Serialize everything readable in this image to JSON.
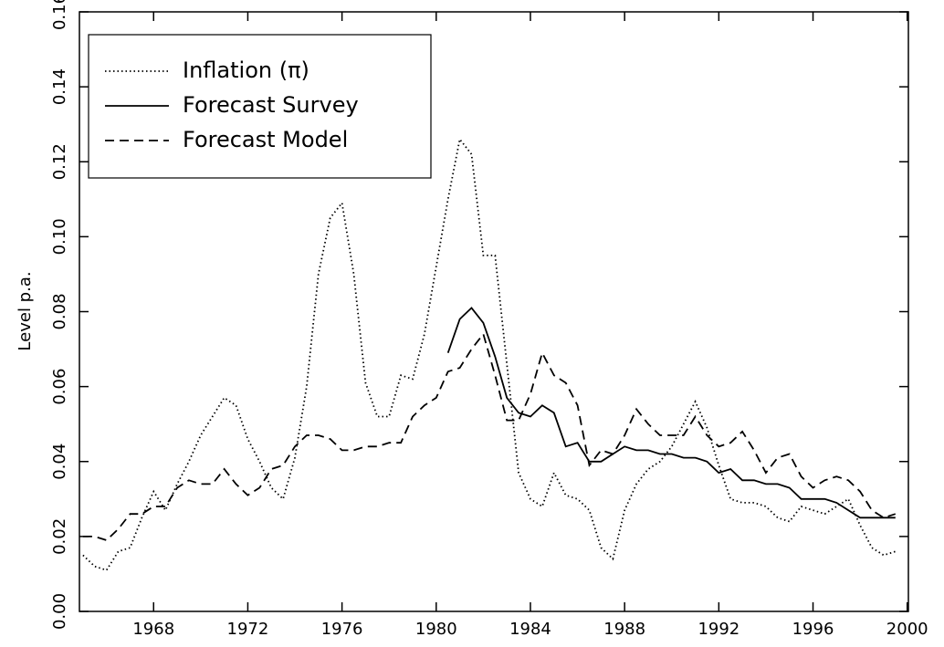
{
  "chart_data": {
    "type": "line",
    "ylabel": "Level p.a.",
    "x": [
      1965.0,
      1965.5,
      1966.0,
      1966.5,
      1967.0,
      1967.5,
      1968.0,
      1968.5,
      1969.0,
      1969.5,
      1970.0,
      1970.5,
      1971.0,
      1971.5,
      1972.0,
      1972.5,
      1973.0,
      1973.5,
      1974.0,
      1974.5,
      1975.0,
      1975.5,
      1976.0,
      1976.5,
      1977.0,
      1977.5,
      1978.0,
      1978.5,
      1979.0,
      1979.5,
      1980.0,
      1980.5,
      1981.0,
      1981.5,
      1982.0,
      1982.5,
      1983.0,
      1983.5,
      1984.0,
      1984.5,
      1985.0,
      1985.5,
      1986.0,
      1986.5,
      1987.0,
      1987.5,
      1988.0,
      1988.5,
      1989.0,
      1989.5,
      1990.0,
      1990.5,
      1991.0,
      1991.5,
      1992.0,
      1992.5,
      1993.0,
      1993.5,
      1994.0,
      1994.5,
      1995.0,
      1995.5,
      1996.0,
      1996.5,
      1997.0,
      1997.5,
      1998.0,
      1998.5,
      1999.0,
      1999.5
    ],
    "series": [
      {
        "name": "Inflation (π)",
        "color": "#000000",
        "style": "dotted",
        "values": [
          0.015,
          0.012,
          0.011,
          0.016,
          0.017,
          0.025,
          0.032,
          0.027,
          0.034,
          0.04,
          0.047,
          0.052,
          0.057,
          0.055,
          0.046,
          0.04,
          0.033,
          0.03,
          0.041,
          0.06,
          0.09,
          0.105,
          0.109,
          0.09,
          0.061,
          0.052,
          0.052,
          0.063,
          0.062,
          0.074,
          0.092,
          0.11,
          0.126,
          0.122,
          0.095,
          0.095,
          0.066,
          0.037,
          0.03,
          0.028,
          0.037,
          0.031,
          0.03,
          0.027,
          0.017,
          0.014,
          0.027,
          0.034,
          0.038,
          0.04,
          0.044,
          0.05,
          0.056,
          0.049,
          0.039,
          0.03,
          0.029,
          0.029,
          0.028,
          0.025,
          0.024,
          0.028,
          0.027,
          0.026,
          0.028,
          0.03,
          0.023,
          0.017,
          0.015,
          0.016
        ]
      },
      {
        "name": "Forecast Survey",
        "color": "#000000",
        "style": "solid",
        "values": [
          null,
          null,
          null,
          null,
          null,
          null,
          null,
          null,
          null,
          null,
          null,
          null,
          null,
          null,
          null,
          null,
          null,
          null,
          null,
          null,
          null,
          null,
          null,
          null,
          null,
          null,
          null,
          null,
          null,
          null,
          null,
          0.069,
          0.078,
          0.081,
          0.077,
          0.068,
          0.057,
          0.053,
          0.052,
          0.055,
          0.053,
          0.044,
          0.045,
          0.04,
          0.04,
          0.042,
          0.044,
          0.043,
          0.043,
          0.042,
          0.042,
          0.041,
          0.041,
          0.04,
          0.037,
          0.038,
          0.035,
          0.035,
          0.034,
          0.034,
          0.033,
          0.03,
          0.03,
          0.03,
          0.029,
          0.027,
          0.025,
          0.025,
          0.025,
          0.025
        ]
      },
      {
        "name": "Forecast Model",
        "color": "#000000",
        "style": "dashed",
        "values": [
          0.02,
          0.02,
          0.019,
          0.022,
          0.026,
          0.026,
          0.028,
          0.028,
          0.033,
          0.035,
          0.034,
          0.034,
          0.038,
          0.034,
          0.031,
          0.033,
          0.038,
          0.039,
          0.044,
          0.047,
          0.047,
          0.046,
          0.043,
          0.043,
          0.044,
          0.044,
          0.045,
          0.045,
          0.052,
          0.055,
          0.057,
          0.064,
          0.065,
          0.07,
          0.074,
          0.063,
          0.051,
          0.051,
          0.058,
          0.069,
          0.063,
          0.061,
          0.055,
          0.039,
          0.043,
          0.042,
          0.047,
          0.054,
          0.05,
          0.047,
          0.047,
          0.047,
          0.052,
          0.047,
          0.044,
          0.045,
          0.048,
          0.043,
          0.037,
          0.041,
          0.042,
          0.036,
          0.033,
          0.035,
          0.036,
          0.035,
          0.032,
          0.027,
          0.025,
          0.026
        ]
      }
    ],
    "xlim": [
      1964.85,
      2000.05
    ],
    "xticks": [
      1968,
      1972,
      1976,
      1980,
      1984,
      1988,
      1992,
      1996,
      2000
    ],
    "ylim": [
      0,
      0.16
    ],
    "yticks": [
      {
        "value": 0,
        "label": "0.00"
      },
      {
        "value": 0.02,
        "label": "0.02"
      },
      {
        "value": 0.04,
        "label": "0.04"
      },
      {
        "value": 0.06,
        "label": "0.06"
      },
      {
        "value": 0.08,
        "label": "0.08"
      },
      {
        "value": 0.1,
        "label": "0.10"
      },
      {
        "value": 0.12,
        "label": "0.12"
      },
      {
        "value": 0.14,
        "label": "0.14"
      },
      {
        "value": 0.16,
        "label": "0.16"
      }
    ],
    "legend": "upper left"
  }
}
